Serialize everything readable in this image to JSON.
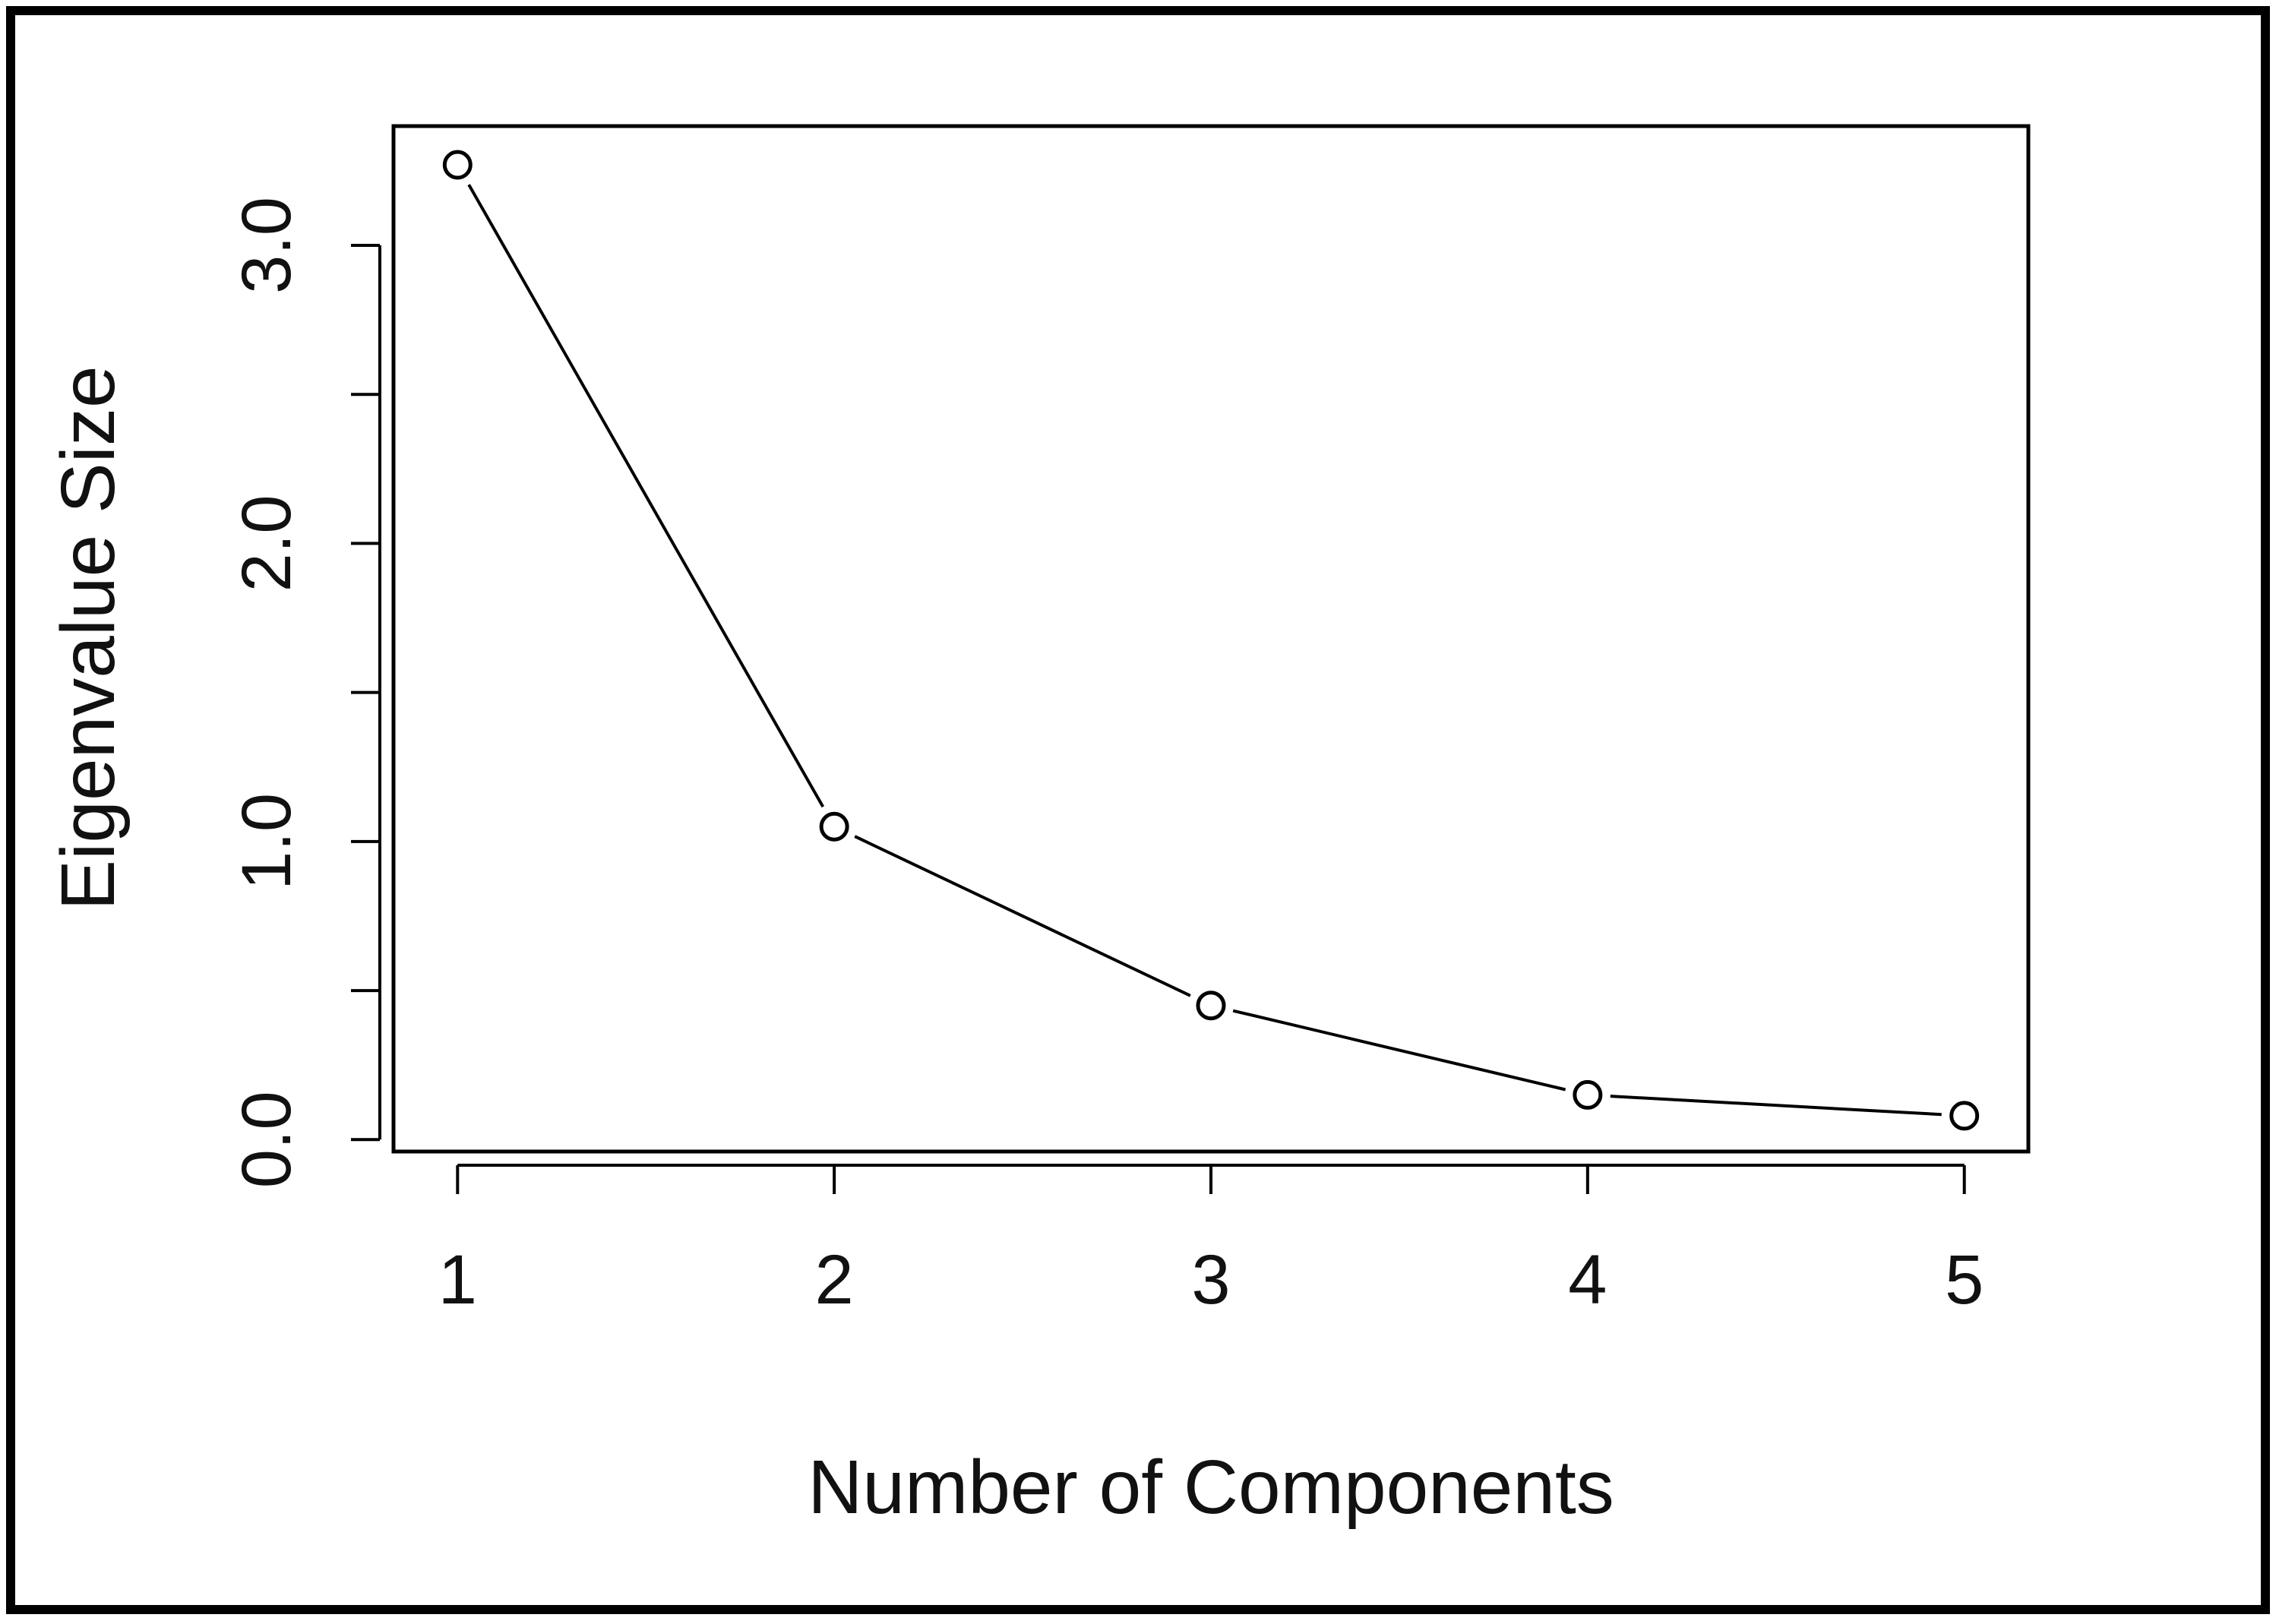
{
  "chart_data": {
    "type": "line",
    "title": "",
    "xlabel": "Number of Components",
    "ylabel": "Eigenvalue Size",
    "x": [
      1,
      2,
      3,
      4,
      5
    ],
    "values": [
      3.27,
      1.05,
      0.45,
      0.15,
      0.08
    ],
    "xlim": [
      0.83,
      5.17
    ],
    "ylim": [
      -0.04,
      3.4
    ],
    "x_ticks": [
      1,
      2,
      3,
      4,
      5
    ],
    "x_tick_labels": [
      "1",
      "2",
      "3",
      "4",
      "5"
    ],
    "y_ticks": [
      0,
      0.5,
      1,
      1.5,
      2,
      2.5,
      3
    ],
    "y_tick_labels": [
      "0.0",
      "1.0",
      "2.0",
      "3.0"
    ],
    "y_labeled_ticks": [
      0,
      1,
      2,
      3
    ],
    "marker": "open-circle",
    "grid": false,
    "legend": "none",
    "colors": {
      "line": "#000000",
      "marker_stroke": "#000000",
      "marker_fill": "#ffffff",
      "text": "#111111",
      "frame": "#000000"
    }
  }
}
